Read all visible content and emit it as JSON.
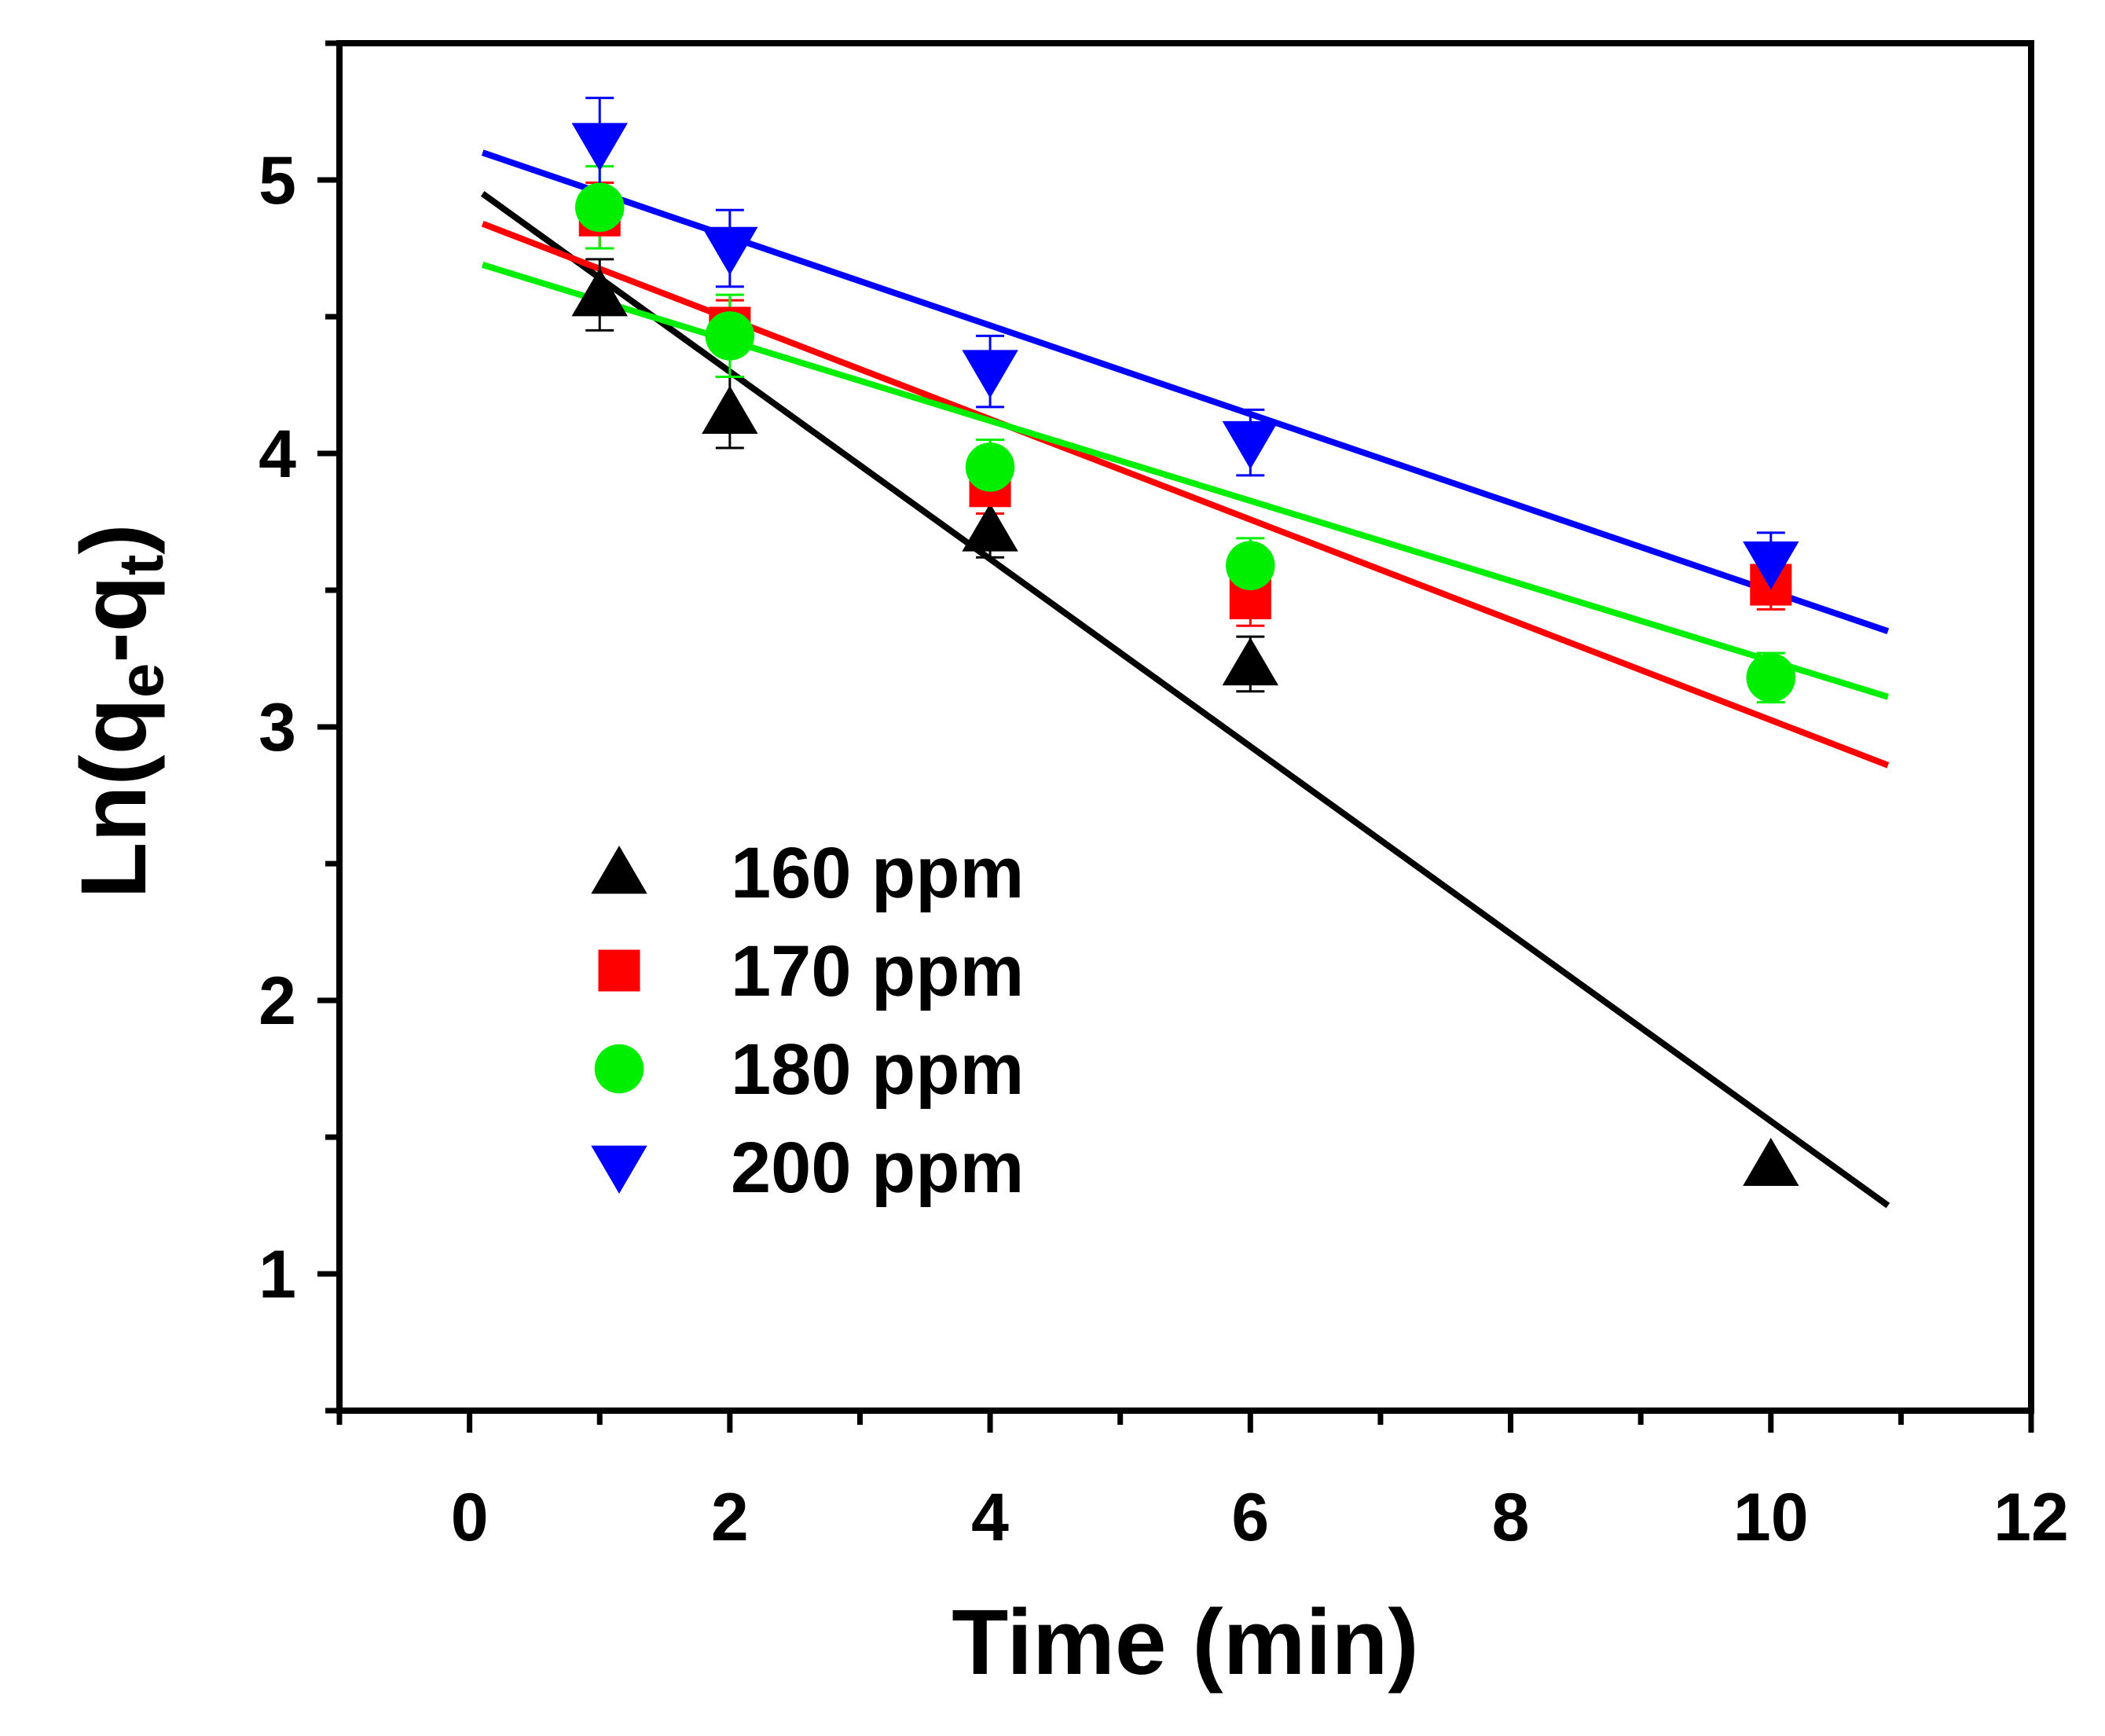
{
  "chart_data": {
    "type": "scatter",
    "xlabel": "Time (min)",
    "ylabel": {
      "main": "Ln(q",
      "sub1": "e",
      "mid": "-q",
      "sub2": "t",
      "end": ")"
    },
    "xlim": [
      -1,
      12
    ],
    "ylim": [
      0.5,
      5.5
    ],
    "x_ticks": [
      0,
      2,
      4,
      6,
      8,
      10,
      12
    ],
    "x_tick_labels": [
      "0",
      "2",
      "4",
      "6",
      "8",
      "10",
      "12"
    ],
    "x_minor_ticks": [
      -1,
      1,
      3,
      5,
      7,
      9,
      11
    ],
    "y_ticks": [
      1,
      2,
      3,
      4,
      5
    ],
    "y_tick_labels": [
      "1",
      "2",
      "3",
      "4",
      "5"
    ],
    "y_minor_ticks": [
      0.5,
      1.5,
      2.5,
      3.5,
      4.5,
      5.5
    ],
    "legend_position": "lower-left",
    "series": [
      {
        "name": "160 ppm",
        "marker": "triangle-up",
        "color": "#000000",
        "x": [
          1,
          2,
          4,
          6,
          10
        ],
        "y": [
          4.58,
          4.15,
          3.72,
          3.23,
          1.4
        ],
        "err": [
          0.13,
          0.13,
          0.1,
          0.1,
          0.0
        ],
        "fit": {
          "x_start": 0.1,
          "x_end": 10.9,
          "y_start": 4.95,
          "y_end": 1.25
        }
      },
      {
        "name": "170 ppm",
        "marker": "square",
        "color": "#ff0000",
        "x": [
          1,
          2,
          4,
          6,
          10
        ],
        "y": [
          4.87,
          4.46,
          3.88,
          3.47,
          3.52
        ],
        "err": [
          0.12,
          0.1,
          0.1,
          0.1,
          0.09
        ],
        "fit": {
          "x_start": 0.1,
          "x_end": 10.9,
          "y_start": 4.84,
          "y_end": 2.86
        }
      },
      {
        "name": "180 ppm",
        "marker": "circle",
        "color": "#00ee00",
        "x": [
          1,
          2,
          4,
          6,
          10
        ],
        "y": [
          4.9,
          4.43,
          3.95,
          3.59,
          3.18
        ],
        "err": [
          0.15,
          0.15,
          0.1,
          0.1,
          0.09
        ],
        "fit": {
          "x_start": 0.1,
          "x_end": 10.9,
          "y_start": 4.69,
          "y_end": 3.11
        }
      },
      {
        "name": "200 ppm",
        "marker": "triangle-down",
        "color": "#0000ff",
        "x": [
          1,
          2,
          4,
          6,
          10
        ],
        "y": [
          5.13,
          4.75,
          4.3,
          4.04,
          3.6
        ],
        "err": [
          0.17,
          0.14,
          0.13,
          0.12,
          0.11
        ],
        "fit": {
          "x_start": 0.1,
          "x_end": 10.9,
          "y_start": 5.1,
          "y_end": 3.35
        }
      }
    ]
  }
}
